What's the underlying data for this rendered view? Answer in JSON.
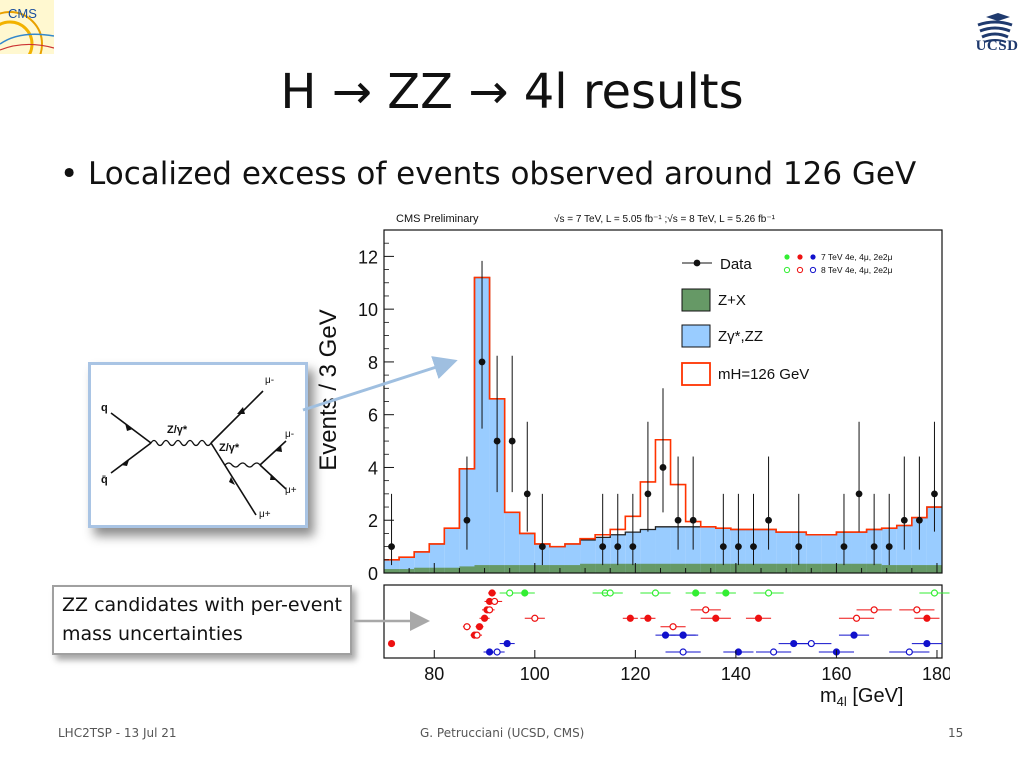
{
  "slide": {
    "title": "H → ZZ → 4l results",
    "bullet": "Localized excess of events observed around 126 GeV",
    "callout": "ZZ candidates with per-event mass uncertainties"
  },
  "logos": {
    "cms": "CMS",
    "ucsd": "UCSD"
  },
  "footer": {
    "left": "LHC2TSP - 13 Jul 21",
    "center": "G. Petrucciani (UCSD, CMS)",
    "page": "15"
  },
  "feynman": {
    "q": "q",
    "qbar": "q̄",
    "z1": "Z/γ*",
    "z2": "Z/γ*",
    "mu1": "μ-",
    "mu2": "μ-",
    "mu3": "μ+",
    "mu4": "μ+"
  },
  "chart_data": {
    "type": "bar",
    "header_left": "CMS Preliminary",
    "header_right": "√s = 7 TeV, L = 5.05 fb⁻¹ ;√s = 8 TeV, L = 5.26 fb⁻¹",
    "xlabel": "m4l [GeV]",
    "ylabel": "Events / 3 GeV",
    "xlim": [
      70,
      181
    ],
    "ylim": [
      0,
      13
    ],
    "x_ticks": [
      "80",
      "100",
      "120",
      "140",
      "160",
      "180"
    ],
    "y_ticks": [
      "0",
      "2",
      "4",
      "6",
      "8",
      "10",
      "12"
    ],
    "bin_width": 3,
    "bin_lo": [
      70,
      73,
      76,
      79,
      82,
      85,
      88,
      91,
      94,
      97,
      100,
      103,
      106,
      109,
      112,
      115,
      118,
      121,
      124,
      127,
      130,
      133,
      136,
      139,
      142,
      145,
      148,
      151,
      154,
      157,
      160,
      163,
      166,
      169,
      172,
      175,
      178
    ],
    "zx": [
      0.15,
      0.15,
      0.2,
      0.2,
      0.2,
      0.25,
      0.3,
      0.3,
      0.3,
      0.3,
      0.3,
      0.3,
      0.3,
      0.35,
      0.35,
      0.35,
      0.35,
      0.35,
      0.35,
      0.35,
      0.35,
      0.35,
      0.35,
      0.35,
      0.35,
      0.35,
      0.35,
      0.35,
      0.35,
      0.35,
      0.35,
      0.35,
      0.35,
      0.3,
      0.3,
      0.3,
      0.3
    ],
    "zz": [
      0.35,
      0.45,
      0.6,
      0.9,
      1.5,
      3.7,
      10.9,
      6.3,
      2.0,
      1.2,
      0.8,
      0.7,
      0.8,
      0.9,
      1.0,
      1.1,
      1.2,
      1.3,
      1.4,
      1.4,
      1.4,
      1.4,
      1.35,
      1.3,
      1.3,
      1.3,
      1.2,
      1.2,
      1.1,
      1.1,
      1.2,
      1.2,
      1.3,
      1.4,
      1.5,
      1.8,
      2.2
    ],
    "signal_mh126": [
      0,
      0,
      0,
      0,
      0,
      0,
      0,
      0,
      0,
      0,
      0,
      0,
      0,
      0.05,
      0.1,
      0.2,
      0.6,
      1.8,
      3.3,
      1.6,
      0.2,
      0,
      0,
      0,
      0,
      0,
      0,
      0,
      0,
      0,
      0,
      0,
      0,
      0,
      0,
      0,
      0
    ],
    "data_x": [
      71.5,
      86.5,
      89.5,
      92.5,
      95.5,
      98.5,
      101.5,
      113.5,
      116.5,
      119.5,
      122.5,
      125.5,
      128.5,
      131.5,
      137.5,
      140.5,
      143.5,
      146.5,
      152.5,
      161.5,
      164.5,
      167.5,
      170.5,
      173.5,
      176.5,
      179.5
    ],
    "data_y": [
      1,
      2,
      8,
      5,
      5,
      3,
      1,
      1,
      1,
      1,
      3,
      4,
      2,
      2,
      1,
      1,
      1,
      2,
      1,
      1,
      3,
      1,
      1,
      2,
      2,
      3
    ],
    "legend": {
      "data": "Data",
      "zx": "Z+X",
      "zz": "Zγ*,ZZ",
      "signal": "mH=126 GeV",
      "row7": "7 TeV 4e, 4μ, 2e2μ",
      "row8": "8 TeV 4e, 4μ, 2e2μ",
      "placement": "top-right"
    },
    "colors": {
      "zz": "#99ccff",
      "zx": "#669966",
      "signal": "#ff3300",
      "e4": "#33ee33",
      "e2m2": "#ee1111",
      "mu4": "#1111cc"
    },
    "candidates": {
      "note": "per-event masses (x) with uncertainties (xerr), row index as vertical order within the panel",
      "filled": [
        {
          "x": 71.5,
          "xerr": 0.0,
          "row": 6,
          "c": "e2m2"
        },
        {
          "x": 88.0,
          "xerr": 0.8,
          "row": 5,
          "c": "e2m2"
        },
        {
          "x": 89.0,
          "xerr": 0.8,
          "row": 4,
          "c": "e2m2"
        },
        {
          "x": 90.0,
          "xerr": 1.0,
          "row": 3,
          "c": "e2m2"
        },
        {
          "x": 90.5,
          "xerr": 1.0,
          "row": 2,
          "c": "e2m2"
        },
        {
          "x": 91.0,
          "xerr": 1.0,
          "row": 1,
          "c": "e2m2"
        },
        {
          "x": 91.5,
          "xerr": 0.8,
          "row": 0,
          "c": "e2m2"
        },
        {
          "x": 91.0,
          "xerr": 1.2,
          "row": 7,
          "c": "mu4"
        },
        {
          "x": 94.5,
          "xerr": 1.5,
          "row": 6,
          "c": "mu4"
        },
        {
          "x": 98.0,
          "xerr": 2.0,
          "row": 0,
          "c": "e4"
        },
        {
          "x": 119.0,
          "xerr": 1.5,
          "row": 3,
          "c": "e2m2"
        },
        {
          "x": 122.5,
          "xerr": 1.5,
          "row": 3,
          "c": "e2m2"
        },
        {
          "x": 126.0,
          "xerr": 2.0,
          "row": 5,
          "c": "mu4"
        },
        {
          "x": 129.5,
          "xerr": 2.5,
          "row": 5,
          "c": "mu4"
        },
        {
          "x": 129.5,
          "xerr": 3.0,
          "row": 5,
          "c": "mu4"
        },
        {
          "x": 132.0,
          "xerr": 2.0,
          "row": 0,
          "c": "e4"
        },
        {
          "x": 136.0,
          "xerr": 3.0,
          "row": 3,
          "c": "e2m2"
        },
        {
          "x": 138.0,
          "xerr": 2.0,
          "row": 0,
          "c": "e4"
        },
        {
          "x": 140.5,
          "xerr": 3.0,
          "row": 7,
          "c": "mu4"
        },
        {
          "x": 144.5,
          "xerr": 2.5,
          "row": 3,
          "c": "e2m2"
        },
        {
          "x": 151.5,
          "xerr": 3.0,
          "row": 6,
          "c": "mu4"
        },
        {
          "x": 160.0,
          "xerr": 3.5,
          "row": 7,
          "c": "mu4"
        },
        {
          "x": 163.5,
          "xerr": 3.0,
          "row": 5,
          "c": "mu4"
        },
        {
          "x": 178.0,
          "xerr": 3.0,
          "row": 6,
          "c": "mu4"
        },
        {
          "x": 178.0,
          "xerr": 2.5,
          "row": 3,
          "c": "e2m2"
        }
      ],
      "open": [
        {
          "x": 86.5,
          "xerr": 0.8,
          "row": 4,
          "c": "e2m2"
        },
        {
          "x": 88.5,
          "xerr": 1.0,
          "row": 5,
          "c": "e2m2"
        },
        {
          "x": 91.0,
          "xerr": 1.0,
          "row": 2,
          "c": "e2m2"
        },
        {
          "x": 92.0,
          "xerr": 1.5,
          "row": 1,
          "c": "e2m2"
        },
        {
          "x": 92.5,
          "xerr": 1.5,
          "row": 7,
          "c": "mu4"
        },
        {
          "x": 95.0,
          "xerr": 2.0,
          "row": 0,
          "c": "e4"
        },
        {
          "x": 100.0,
          "xerr": 2.0,
          "row": 3,
          "c": "e2m2"
        },
        {
          "x": 114.0,
          "xerr": 2.5,
          "row": 0,
          "c": "e4"
        },
        {
          "x": 115.0,
          "xerr": 2.5,
          "row": 0,
          "c": "e4"
        },
        {
          "x": 124.0,
          "xerr": 3.0,
          "row": 0,
          "c": "e4"
        },
        {
          "x": 127.5,
          "xerr": 2.5,
          "row": 4,
          "c": "e2m2"
        },
        {
          "x": 129.5,
          "xerr": 3.5,
          "row": 7,
          "c": "mu4"
        },
        {
          "x": 134.0,
          "xerr": 3.0,
          "row": 2,
          "c": "e2m2"
        },
        {
          "x": 146.5,
          "xerr": 3.0,
          "row": 0,
          "c": "e4"
        },
        {
          "x": 147.5,
          "xerr": 3.5,
          "row": 7,
          "c": "mu4"
        },
        {
          "x": 155.0,
          "xerr": 4.0,
          "row": 6,
          "c": "mu4"
        },
        {
          "x": 164.0,
          "xerr": 3.5,
          "row": 3,
          "c": "e2m2"
        },
        {
          "x": 167.5,
          "xerr": 3.5,
          "row": 2,
          "c": "e2m2"
        },
        {
          "x": 174.5,
          "xerr": 4.0,
          "row": 7,
          "c": "mu4"
        },
        {
          "x": 176.0,
          "xerr": 3.5,
          "row": 2,
          "c": "e2m2"
        },
        {
          "x": 179.5,
          "xerr": 3.0,
          "row": 0,
          "c": "e4"
        }
      ]
    }
  }
}
